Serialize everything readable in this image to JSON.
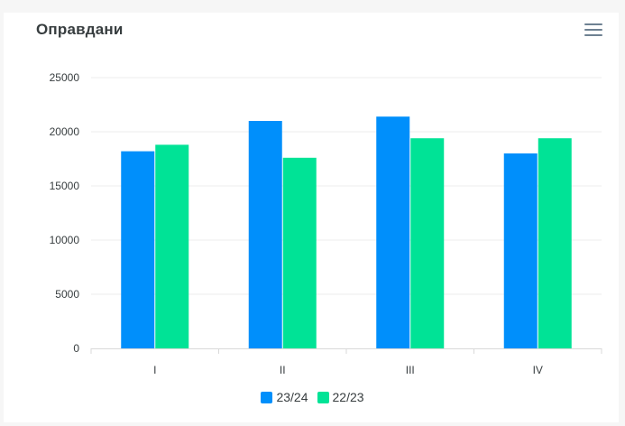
{
  "title": "Оправдани",
  "menu_icon": "hamburger-menu-icon",
  "chart_data": {
    "type": "bar",
    "categories": [
      "I",
      "II",
      "III",
      "IV"
    ],
    "series": [
      {
        "name": "23/24",
        "color": "#008ffb",
        "values": [
          18200,
          21000,
          21400,
          18000
        ]
      },
      {
        "name": "22/23",
        "color": "#00e396",
        "values": [
          18800,
          17600,
          19400,
          19400
        ]
      }
    ],
    "ylim": [
      0,
      25000
    ],
    "yticks": [
      "25000",
      "20000",
      "15000",
      "10000",
      "5000",
      "0"
    ],
    "grid": true,
    "legend_position": "bottom-center"
  }
}
